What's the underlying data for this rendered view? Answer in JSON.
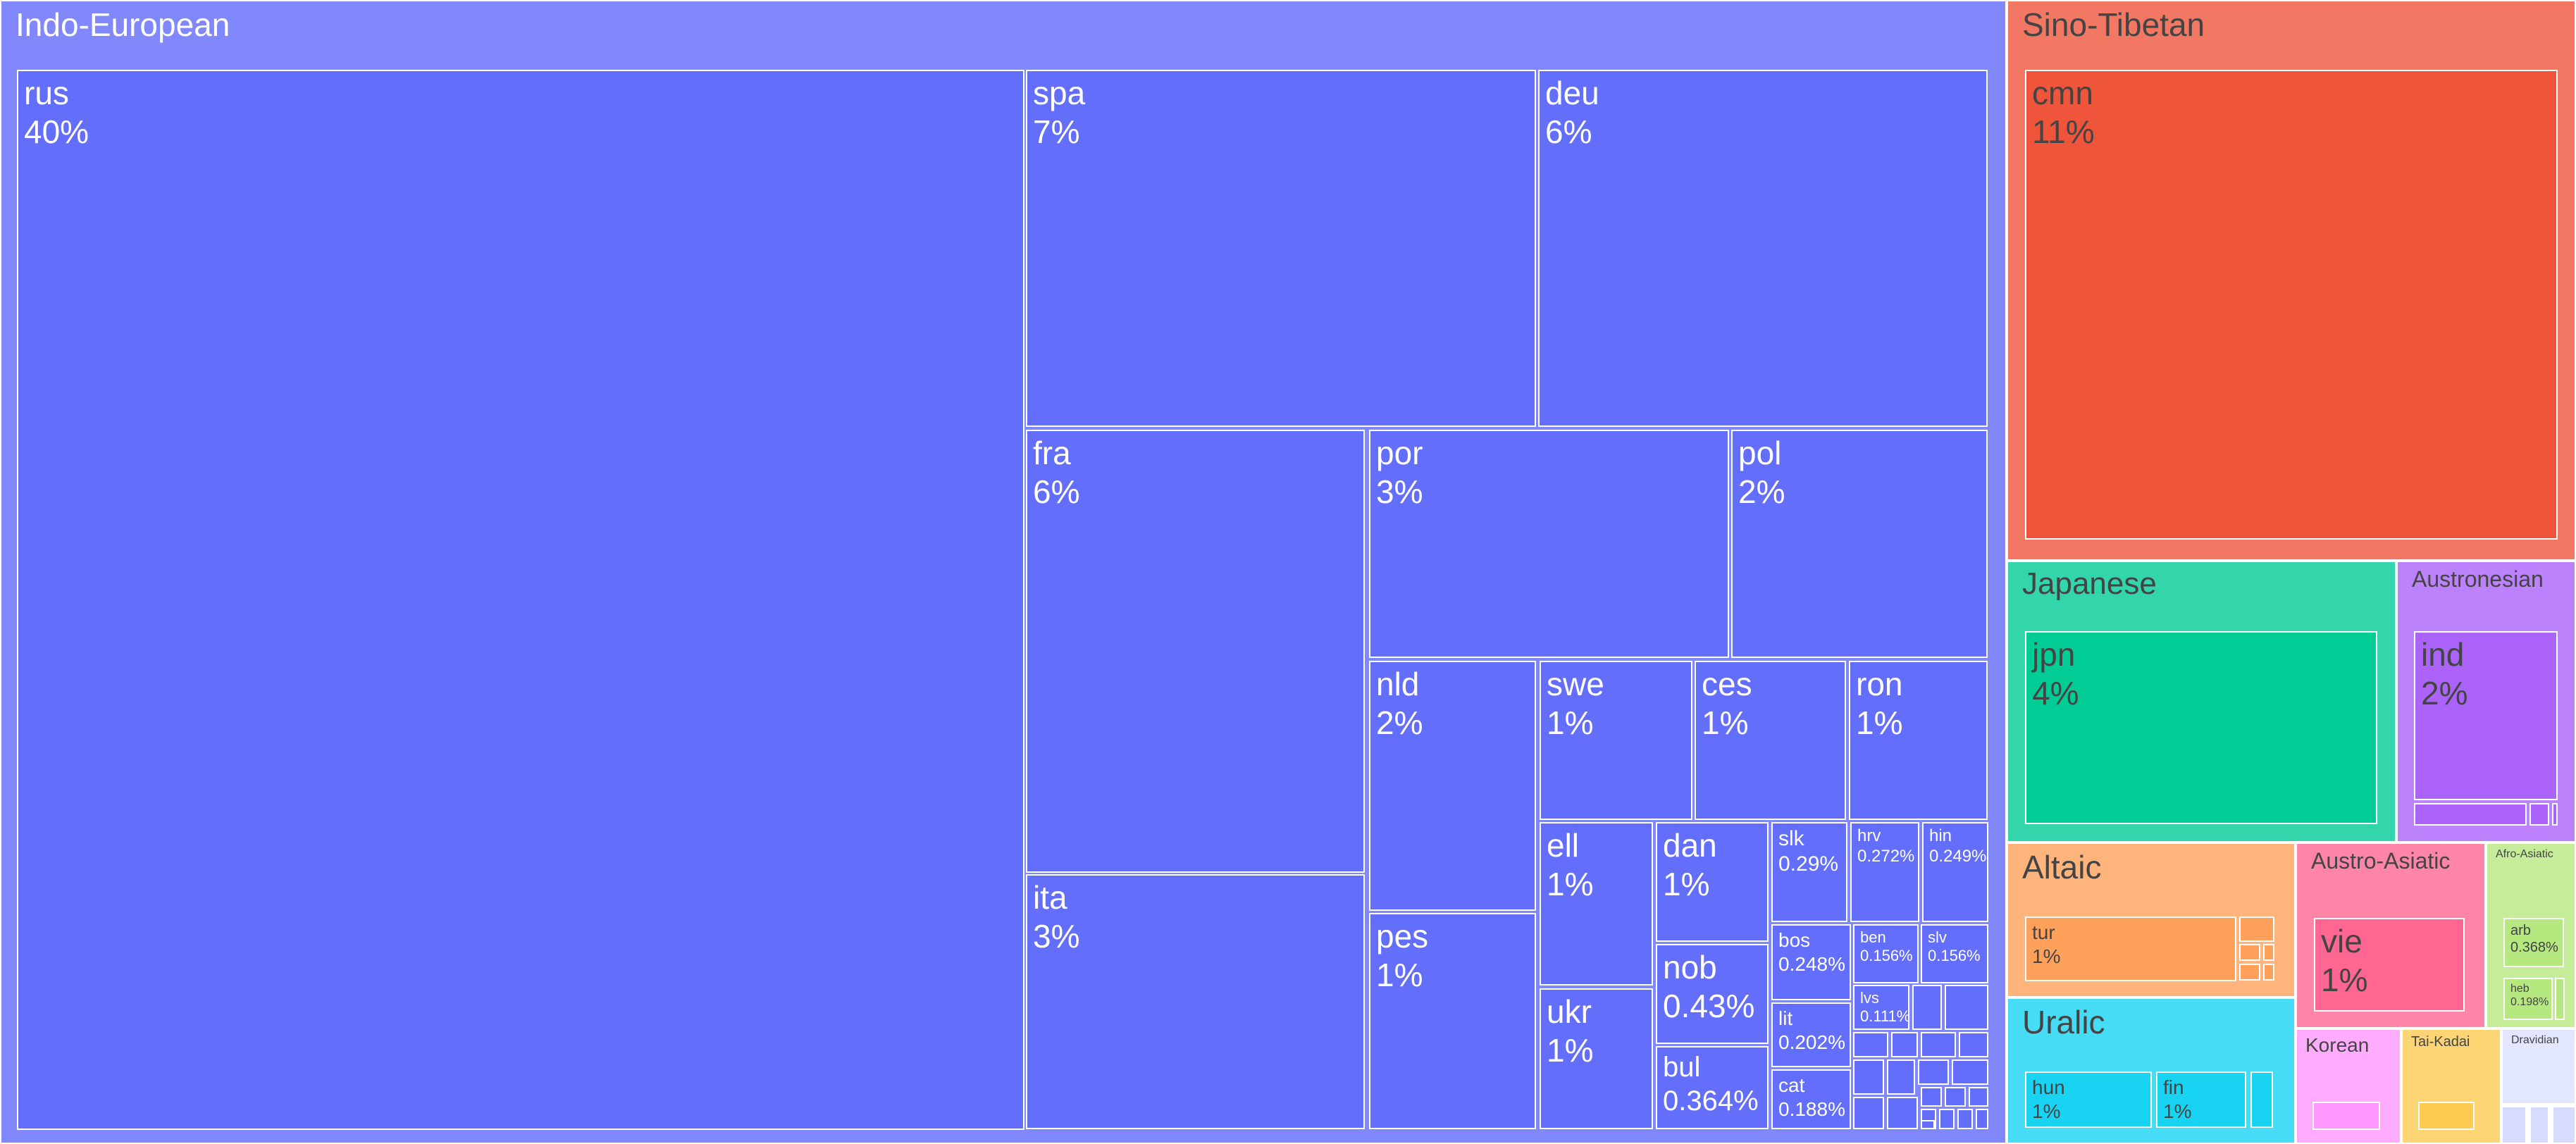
{
  "chart_data": {
    "type": "treemap",
    "unit": "%",
    "groups": [
      {
        "name": "Indo-European",
        "color": "#636efa",
        "header_color": "#8088fb",
        "text_color": "#ffffff",
        "children": [
          {
            "name": "rus",
            "label": "40%",
            "value": 40
          },
          {
            "name": "spa",
            "label": "7%",
            "value": 7
          },
          {
            "name": "deu",
            "label": "6%",
            "value": 6
          },
          {
            "name": "fra",
            "label": "6%",
            "value": 6
          },
          {
            "name": "ita",
            "label": "3%",
            "value": 3
          },
          {
            "name": "por",
            "label": "3%",
            "value": 3
          },
          {
            "name": "pol",
            "label": "2%",
            "value": 2
          },
          {
            "name": "nld",
            "label": "2%",
            "value": 2
          },
          {
            "name": "pes",
            "label": "1%",
            "value": 1
          },
          {
            "name": "swe",
            "label": "1%",
            "value": 1
          },
          {
            "name": "ces",
            "label": "1%",
            "value": 1
          },
          {
            "name": "ron",
            "label": "1%",
            "value": 1
          },
          {
            "name": "ell",
            "label": "1%",
            "value": 1
          },
          {
            "name": "ukr",
            "label": "1%",
            "value": 1
          },
          {
            "name": "dan",
            "label": "1%",
            "value": 1
          },
          {
            "name": "nob",
            "label": "0.43%",
            "value": 0.43
          },
          {
            "name": "bul",
            "label": "0.364%",
            "value": 0.364
          },
          {
            "name": "slk",
            "label": "0.29%",
            "value": 0.29
          },
          {
            "name": "hrv",
            "label": "0.272%",
            "value": 0.272
          },
          {
            "name": "hin",
            "label": "0.249%",
            "value": 0.249
          },
          {
            "name": "bos",
            "label": "0.248%",
            "value": 0.248
          },
          {
            "name": "lit",
            "label": "0.202%",
            "value": 0.202
          },
          {
            "name": "cat",
            "label": "0.188%",
            "value": 0.188
          },
          {
            "name": "ben",
            "label": "0.156%",
            "value": 0.156
          },
          {
            "name": "slv",
            "label": "0.156%",
            "value": 0.156
          },
          {
            "name": "lvs",
            "label": "0.111%",
            "value": 0.111
          }
        ]
      },
      {
        "name": "Sino-Tibetan",
        "color": "#ef553b",
        "header_color": "#f27863",
        "text_color": "#444444",
        "children": [
          {
            "name": "cmn",
            "label": "11%",
            "value": 11
          }
        ]
      },
      {
        "name": "Japanese",
        "color": "#00cc96",
        "header_color": "#33d6ab",
        "text_color": "#444444",
        "children": [
          {
            "name": "jpn",
            "label": "4%",
            "value": 4
          }
        ]
      },
      {
        "name": "Austronesian",
        "color": "#ab63fa",
        "header_color": "#bc82fb",
        "text_color": "#444444",
        "children": [
          {
            "name": "ind",
            "label": "2%",
            "value": 2
          }
        ]
      },
      {
        "name": "Altaic",
        "color": "#ffa15a",
        "header_color": "#ffb47b",
        "text_color": "#444444",
        "children": [
          {
            "name": "tur",
            "label": "1%",
            "value": 1
          }
        ]
      },
      {
        "name": "Austro-Asiatic",
        "color": "#ff6692",
        "header_color": "#ff85a8",
        "text_color": "#444444",
        "children": [
          {
            "name": "vie",
            "label": "1%",
            "value": 1
          }
        ]
      },
      {
        "name": "Afro-Asiatic",
        "color": "#b6e880",
        "header_color": "#c5ed99",
        "text_color": "#444444",
        "children": [
          {
            "name": "arb",
            "label": "0.368%",
            "value": 0.368
          },
          {
            "name": "heb",
            "label": "0.198%",
            "value": 0.198
          }
        ]
      },
      {
        "name": "Uralic",
        "color": "#19d3f3",
        "header_color": "#47dcf5",
        "text_color": "#444444",
        "children": [
          {
            "name": "hun",
            "label": "1%",
            "value": 1
          },
          {
            "name": "fin",
            "label": "1%",
            "value": 1
          }
        ]
      },
      {
        "name": "Korean",
        "color": "#ff97ff",
        "header_color": "#ffacff",
        "text_color": "#444444",
        "children": []
      },
      {
        "name": "Tai-Kadai",
        "color": "#fecb52",
        "header_color": "#fed575",
        "text_color": "#444444",
        "children": []
      },
      {
        "name": "Dravidian",
        "color": "#d7dbff",
        "header_color": "#e3e6ff",
        "text_color": "#444444",
        "children": []
      }
    ]
  }
}
